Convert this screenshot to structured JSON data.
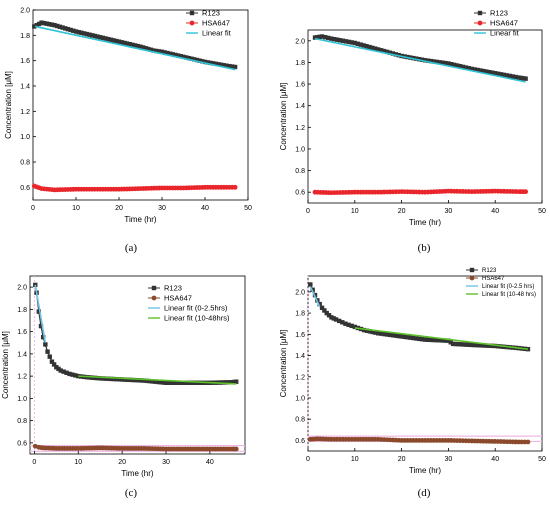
{
  "figure": {
    "panels": [
      "(a)",
      "(b)",
      "(c)",
      "(d)"
    ]
  },
  "chart_data": [
    {
      "type": "line",
      "panel_label": "(a)",
      "xlabel": "Time (hr)",
      "ylabel": "Concentration [μM]",
      "xlim": [
        0,
        50
      ],
      "ylim": [
        0.5,
        2.0
      ],
      "x_ticks": [
        "0",
        "10",
        "20",
        "30",
        "40",
        "50"
      ],
      "y_ticks": [
        "0.6",
        "0.8",
        "1.0",
        "1.2",
        "1.4",
        "1.6",
        "1.8",
        "2.0"
      ],
      "legend_position": "top-right",
      "grid": false,
      "series": [
        {
          "name": "R123",
          "color": "#333333",
          "marker": "square",
          "x": [
            0.3,
            2,
            5,
            10,
            15,
            20,
            25,
            28,
            30,
            35,
            40,
            45,
            47
          ],
          "y": [
            1.87,
            1.9,
            1.88,
            1.83,
            1.79,
            1.75,
            1.71,
            1.68,
            1.67,
            1.63,
            1.59,
            1.56,
            1.55
          ]
        },
        {
          "name": "HSA647",
          "color": "#e8262b",
          "marker": "circle",
          "x": [
            0.3,
            2,
            5,
            10,
            15,
            20,
            25,
            30,
            35,
            40,
            45,
            47
          ],
          "y": [
            0.61,
            0.59,
            0.58,
            0.585,
            0.585,
            0.585,
            0.59,
            0.595,
            0.595,
            0.6,
            0.6,
            0.6
          ]
        },
        {
          "name": "Linear fit",
          "color": "#2ec4d6",
          "marker": "line",
          "x": [
            0.5,
            47
          ],
          "y": [
            1.87,
            1.53
          ]
        }
      ]
    },
    {
      "type": "line",
      "panel_label": "(b)",
      "xlabel": "Time (hr)",
      "ylabel": "Concentration [μM]",
      "xlim": [
        0,
        50
      ],
      "ylim": [
        0.5,
        2.1
      ],
      "x_ticks": [
        "0",
        "10",
        "20",
        "30",
        "40",
        "50"
      ],
      "y_ticks": [
        "0.6",
        "0.8",
        "1.0",
        "1.2",
        "1.4",
        "1.6",
        "1.8",
        "2.0"
      ],
      "legend_position": "top-right",
      "grid": false,
      "series": [
        {
          "name": "R123",
          "color": "#333333",
          "marker": "square",
          "x": [
            1.5,
            3,
            5,
            10,
            15,
            20,
            25,
            30,
            35,
            40,
            45,
            46.5
          ],
          "y": [
            2.03,
            2.04,
            2.02,
            1.98,
            1.92,
            1.86,
            1.82,
            1.79,
            1.74,
            1.7,
            1.66,
            1.65
          ]
        },
        {
          "name": "HSA647",
          "color": "#e8262b",
          "marker": "circle",
          "x": [
            1.5,
            5,
            10,
            15,
            20,
            25,
            30,
            35,
            40,
            45,
            46.5
          ],
          "y": [
            0.6,
            0.595,
            0.6,
            0.6,
            0.605,
            0.6,
            0.61,
            0.605,
            0.61,
            0.605,
            0.605
          ]
        },
        {
          "name": "Linear fit",
          "color": "#2ec4d6",
          "marker": "line",
          "x": [
            1.5,
            46.5
          ],
          "y": [
            2.02,
            1.62
          ]
        }
      ]
    },
    {
      "type": "line",
      "panel_label": "(c)",
      "xlabel": "Time (hr)",
      "ylabel": "Concentration [μM]",
      "xlim": [
        -1,
        48
      ],
      "ylim": [
        0.5,
        2.1
      ],
      "x_ticks": [
        "0",
        "10",
        "20",
        "30",
        "40"
      ],
      "y_ticks": [
        "0.6",
        "0.8",
        "1.0",
        "1.2",
        "1.4",
        "1.6",
        "1.8",
        "2.0"
      ],
      "legend_position": "top-right",
      "grid": false,
      "series": [
        {
          "name": "R123",
          "color": "#333333",
          "marker": "square",
          "x": [
            0.2,
            0.5,
            1,
            1.5,
            2,
            3,
            4,
            5,
            6,
            8,
            10,
            12,
            15,
            20,
            25,
            30,
            35,
            40,
            45,
            46
          ],
          "y": [
            2.02,
            1.95,
            1.78,
            1.65,
            1.55,
            1.42,
            1.33,
            1.28,
            1.25,
            1.22,
            1.2,
            1.19,
            1.18,
            1.17,
            1.16,
            1.14,
            1.14,
            1.14,
            1.145,
            1.15
          ]
        },
        {
          "name": "HSA647",
          "color": "#8b4a2b",
          "marker": "circle",
          "x": [
            0.2,
            1,
            2,
            5,
            10,
            15,
            20,
            25,
            30,
            35,
            40,
            45,
            46
          ],
          "y": [
            0.57,
            0.56,
            0.555,
            0.55,
            0.55,
            0.555,
            0.55,
            0.55,
            0.545,
            0.545,
            0.545,
            0.545,
            0.545
          ]
        },
        {
          "name": "Linear fit (0-2.5hrs)",
          "color": "#6fc3e6",
          "marker": "line",
          "x": [
            0.2,
            2.5
          ],
          "y": [
            2.02,
            1.5
          ]
        },
        {
          "name": "Linear fit (10-48hrs)",
          "color": "#5cc12a",
          "marker": "line",
          "x": [
            10,
            46
          ],
          "y": [
            1.2,
            1.13
          ]
        }
      ]
    },
    {
      "type": "line",
      "panel_label": "(d)",
      "xlabel": "Time (hr)",
      "ylabel": "Concentration [μM]",
      "xlim": [
        0,
        50
      ],
      "ylim": [
        0.5,
        2.15
      ],
      "x_ticks": [
        "0",
        "10",
        "20",
        "30",
        "40",
        "50"
      ],
      "y_ticks": [
        "0.6",
        "0.8",
        "1.0",
        "1.2",
        "1.4",
        "1.6",
        "1.8",
        "2.0"
      ],
      "legend_position": "top-right",
      "grid": false,
      "series": [
        {
          "name": "R123",
          "color": "#333333",
          "marker": "square",
          "x": [
            0.5,
            1,
            2,
            3,
            4,
            5,
            6,
            8,
            10,
            12,
            15,
            20,
            25,
            30,
            31,
            35,
            40,
            45,
            47
          ],
          "y": [
            2.07,
            2.02,
            1.92,
            1.85,
            1.8,
            1.76,
            1.74,
            1.7,
            1.67,
            1.64,
            1.61,
            1.58,
            1.55,
            1.54,
            1.51,
            1.5,
            1.49,
            1.47,
            1.46
          ]
        },
        {
          "name": "HSA647",
          "color": "#8b4a2b",
          "marker": "circle",
          "x": [
            0.5,
            2,
            5,
            10,
            15,
            20,
            25,
            30,
            35,
            40,
            45,
            47
          ],
          "y": [
            0.61,
            0.615,
            0.61,
            0.61,
            0.61,
            0.6,
            0.6,
            0.6,
            0.595,
            0.59,
            0.585,
            0.585
          ]
        },
        {
          "name": "Linear fit (0-2.5 hrs)",
          "color": "#6fc3e6",
          "marker": "line",
          "x": [
            0.5,
            2.5
          ],
          "y": [
            2.05,
            1.86
          ]
        },
        {
          "name": "Linear fit (10-48 hrs)",
          "color": "#5cc12a",
          "marker": "line",
          "x": [
            10,
            47
          ],
          "y": [
            1.66,
            1.46
          ]
        }
      ]
    }
  ]
}
